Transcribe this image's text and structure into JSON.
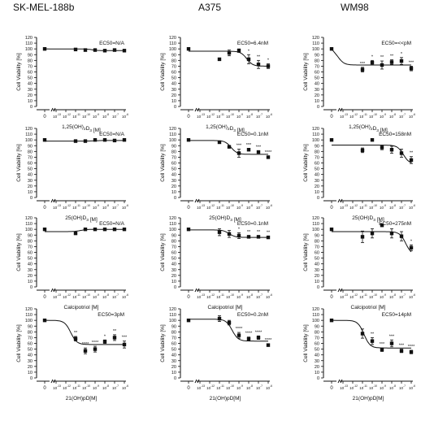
{
  "columns": [
    "SK-MEL-188b",
    "A375",
    "WM98"
  ],
  "chart_data": [
    {
      "type": "scatter",
      "cell_line": "SK-MEL-188b",
      "compound": "1,25(OH)2D3",
      "annotation": "EC50=N/A",
      "ylabel": "Cell Viability [%]",
      "ylim": [
        0,
        120
      ],
      "x_ticks": [
        "0",
        "10-13",
        "10-12",
        "10-11",
        "10-10",
        "10-9",
        "10-8",
        "10-7",
        "10-6"
      ],
      "x": [
        "0",
        "10-11",
        "10-10",
        "10-9",
        "10-8",
        "10-7",
        "10-6"
      ],
      "y": [
        100,
        99,
        98,
        98,
        97,
        98,
        97
      ],
      "err": [
        1,
        1,
        1,
        1,
        1,
        1,
        1
      ],
      "sig": [
        "",
        "",
        "",
        "",
        "",
        "",
        ""
      ],
      "fit": {
        "top": 100,
        "bottom": 97,
        "logEC50": -9.3
      }
    },
    {
      "type": "scatter",
      "cell_line": "A375",
      "compound": "1,25(OH)2D3",
      "annotation": "EC50=6.4nM",
      "ylabel": "Cell Viability [%]",
      "ylim": [
        0,
        120
      ],
      "x_ticks": [
        "0",
        "10-13",
        "10-12",
        "10-11",
        "10-10",
        "10-9",
        "10-8",
        "10-7",
        "10-6"
      ],
      "x": [
        "0",
        "10-11",
        "10-10",
        "10-9",
        "10-8",
        "10-7",
        "10-6"
      ],
      "y": [
        100,
        82,
        93,
        97,
        82,
        73,
        70
      ],
      "err": [
        1,
        1,
        5,
        3,
        8,
        7,
        4
      ],
      "sig": [
        "",
        "",
        "",
        "",
        "*",
        "**",
        "*"
      ],
      "fit": {
        "top": 96,
        "bottom": 70,
        "logEC50": -8.2
      }
    },
    {
      "type": "scatter",
      "cell_line": "WM98",
      "compound": "1,25(OH)2D3",
      "annotation": "EC50=<<pM",
      "ylabel": "Cell Viability [%]",
      "ylim": [
        0,
        120
      ],
      "x_ticks": [
        "0",
        "10-13",
        "10-12",
        "10-11",
        "10-10",
        "10-9",
        "10-8",
        "10-7",
        "10-6"
      ],
      "x": [
        "0",
        "10-11",
        "10-10",
        "10-9",
        "10-8",
        "10-7",
        "10-6"
      ],
      "y": [
        100,
        64,
        76,
        72,
        77,
        79,
        66
      ],
      "err": [
        1,
        4,
        4,
        7,
        4,
        6,
        4
      ],
      "sig": [
        "",
        "***",
        "*",
        "**",
        "**",
        "*",
        "***"
      ],
      "fit": {
        "top": 100,
        "bottom": 72,
        "logEC50": -13.5
      }
    },
    {
      "type": "scatter",
      "cell_line": "SK-MEL-188b",
      "compound": "25(OH)D3",
      "annotation": "EC50=N/A",
      "ylabel": "Cell Viability [%]",
      "ylim": [
        0,
        120
      ],
      "x_ticks": [
        "0",
        "10-13",
        "10-12",
        "10-11",
        "10-10",
        "10-9",
        "10-8",
        "10-7",
        "10-6"
      ],
      "x": [
        "0",
        "10-11",
        "10-10",
        "10-9",
        "10-8",
        "10-7",
        "10-6"
      ],
      "y": [
        100,
        98,
        98,
        100,
        100,
        99,
        100
      ],
      "err": [
        1,
        1,
        1,
        1,
        1,
        1,
        1
      ],
      "sig": [
        "",
        "",
        "",
        "",
        "",
        "",
        ""
      ],
      "fit": {
        "top": 98,
        "bottom": 99,
        "logEC50": -9
      }
    },
    {
      "type": "scatter",
      "cell_line": "A375",
      "compound": "25(OH)D3",
      "annotation": "EC50=0.1nM",
      "ylabel": "Cell Viability [%]",
      "ylim": [
        0,
        120
      ],
      "x_ticks": [
        "0",
        "10-13",
        "10-12",
        "10-11",
        "10-10",
        "10-9",
        "10-8",
        "10-7",
        "10-6"
      ],
      "x": [
        "0",
        "10-11",
        "10-10",
        "10-9",
        "10-8",
        "10-7",
        "10-6"
      ],
      "y": [
        100,
        96,
        88,
        77,
        83,
        79,
        70
      ],
      "err": [
        1,
        1,
        2,
        7,
        2,
        2,
        2
      ],
      "sig": [
        "",
        "",
        "",
        "***",
        "***",
        "***",
        "****"
      ],
      "fit": {
        "top": 99,
        "bottom": 75,
        "logEC50": -9.8
      }
    },
    {
      "type": "scatter",
      "cell_line": "WM98",
      "compound": "25(OH)D3",
      "annotation": "EC50=158nM",
      "ylabel": "Cell Viability [%]",
      "ylim": [
        0,
        120
      ],
      "x_ticks": [
        "0",
        "10-13",
        "10-12",
        "10-11",
        "10-10",
        "10-9",
        "10-8",
        "10-7",
        "10-6"
      ],
      "x": [
        "0",
        "10-11",
        "10-10",
        "10-9",
        "10-8",
        "10-7",
        "10-6"
      ],
      "y": [
        100,
        82,
        100,
        87,
        83,
        77,
        65
      ],
      "err": [
        1,
        4,
        1,
        4,
        6,
        7,
        6
      ],
      "sig": [
        "",
        "",
        "",
        "",
        "",
        "",
        "**"
      ],
      "fit": {
        "top": 91,
        "bottom": 58,
        "logEC50": -6.8
      }
    },
    {
      "type": "scatter",
      "cell_line": "SK-MEL-188b",
      "compound": "Calcipotriol",
      "annotation": "EC50=N/A",
      "ylabel": "Cell Viability [%]",
      "ylim": [
        0,
        120
      ],
      "x_ticks": [
        "0",
        "10-13",
        "10-12",
        "10-11",
        "10-10",
        "10-9",
        "10-8",
        "10-7",
        "10-6"
      ],
      "x": [
        "0",
        "10-11",
        "10-10",
        "10-9",
        "10-8",
        "10-7",
        "10-6"
      ],
      "y": [
        100,
        93,
        100,
        100,
        100,
        100,
        100
      ],
      "err": [
        1,
        1,
        1,
        1,
        1,
        1,
        1
      ],
      "sig": [
        "",
        "",
        "",
        "",
        "",
        "",
        ""
      ],
      "fit": {
        "top": 96,
        "bottom": 100,
        "logEC50": -10.5
      }
    },
    {
      "type": "scatter",
      "cell_line": "A375",
      "compound": "Calcipotriol",
      "annotation": "EC50=0.1nM",
      "ylabel": "Cell Viability [%]",
      "ylim": [
        0,
        120
      ],
      "x_ticks": [
        "0",
        "10-13",
        "10-12",
        "10-11",
        "10-10",
        "10-9",
        "10-8",
        "10-7",
        "10-6"
      ],
      "x": [
        "0",
        "10-11",
        "10-10",
        "10-9",
        "10-8",
        "10-7",
        "10-6"
      ],
      "y": [
        100,
        95,
        92,
        89,
        87,
        87,
        86
      ],
      "err": [
        1,
        6,
        6,
        5,
        2,
        2,
        2
      ],
      "sig": [
        "",
        "",
        "",
        "*",
        "**",
        "**",
        "**"
      ],
      "fit": {
        "top": 99,
        "bottom": 86,
        "logEC50": -10
      }
    },
    {
      "type": "scatter",
      "cell_line": "WM98",
      "compound": "Calcipotriol",
      "annotation": "EC50=275nM",
      "ylabel": "Cell Viability [%]",
      "ylim": [
        0,
        120
      ],
      "x_ticks": [
        "0",
        "10-13",
        "10-12",
        "10-11",
        "10-10",
        "10-9",
        "10-8",
        "10-7",
        "10-6"
      ],
      "x": [
        "0",
        "10-11",
        "10-10",
        "10-9",
        "10-8",
        "10-7",
        "10-6"
      ],
      "y": [
        100,
        87,
        93,
        107,
        93,
        88,
        68
      ],
      "err": [
        1,
        10,
        8,
        2,
        8,
        8,
        5
      ],
      "sig": [
        "",
        "",
        "",
        "",
        "",
        "",
        "*"
      ],
      "fit": {
        "top": 96,
        "bottom": 55,
        "logEC50": -6.56
      }
    },
    {
      "type": "scatter",
      "cell_line": "SK-MEL-188b",
      "compound": "21(OH)pD",
      "annotation": "EC50=3pM",
      "ylabel": "Cell Viability [%]",
      "ylim": [
        0,
        120
      ],
      "x_ticks": [
        "0",
        "10-13",
        "10-12",
        "10-11",
        "10-10",
        "10-9",
        "10-8",
        "10-7",
        "10-6"
      ],
      "x": [
        "0",
        "10-11",
        "10-10",
        "10-9",
        "10-8",
        "10-7",
        "10-6"
      ],
      "y": [
        100,
        68,
        47,
        50,
        63,
        70,
        58
      ],
      "err": [
        1,
        4,
        5,
        5,
        3,
        5,
        6
      ],
      "sig": [
        "",
        "**",
        "****",
        "****",
        "*",
        "**",
        "***"
      ],
      "fit": {
        "top": 100,
        "bottom": 58,
        "logEC50": -11.5
      }
    },
    {
      "type": "scatter",
      "cell_line": "A375",
      "compound": "21(OH)pD",
      "annotation": "EC50=0.2nM",
      "ylabel": "Cell Viability [%]",
      "ylim": [
        0,
        120
      ],
      "x_ticks": [
        "0",
        "10-13",
        "10-12",
        "10-11",
        "10-10",
        "10-9",
        "10-8",
        "10-7",
        "10-6"
      ],
      "x": [
        "0",
        "10-11",
        "10-10",
        "10-9",
        "10-8",
        "10-7",
        "10-6"
      ],
      "y": [
        100,
        103,
        96,
        74,
        68,
        70,
        57
      ],
      "err": [
        2,
        5,
        4,
        5,
        3,
        3,
        2
      ],
      "sig": [
        "",
        "",
        "",
        "****",
        "****",
        "****",
        "****"
      ],
      "fit": {
        "top": 102,
        "bottom": 64,
        "logEC50": -9.7
      }
    },
    {
      "type": "scatter",
      "cell_line": "WM98",
      "compound": "21(OH)pD",
      "annotation": "EC50=14pM",
      "ylabel": "Cell Viability [%]",
      "ylim": [
        0,
        120
      ],
      "x_ticks": [
        "0",
        "10-13",
        "10-12",
        "10-11",
        "10-10",
        "10-9",
        "10-8",
        "10-7",
        "10-6"
      ],
      "x": [
        "0",
        "10-11",
        "10-10",
        "10-9",
        "10-8",
        "10-7",
        "10-6"
      ],
      "y": [
        100,
        77,
        64,
        49,
        60,
        47,
        45
      ],
      "err": [
        1,
        8,
        6,
        3,
        6,
        3,
        3
      ],
      "sig": [
        "",
        "",
        "**",
        "***",
        "***",
        "***",
        "****"
      ],
      "fit": {
        "top": 100,
        "bottom": 52,
        "logEC50": -10.85
      }
    }
  ],
  "xlabels": [
    "1,25(OH)2D3 [M]",
    "25(OH)D3 [M]",
    "Calcipotriol [M]",
    "21(OH)pD[M]"
  ]
}
